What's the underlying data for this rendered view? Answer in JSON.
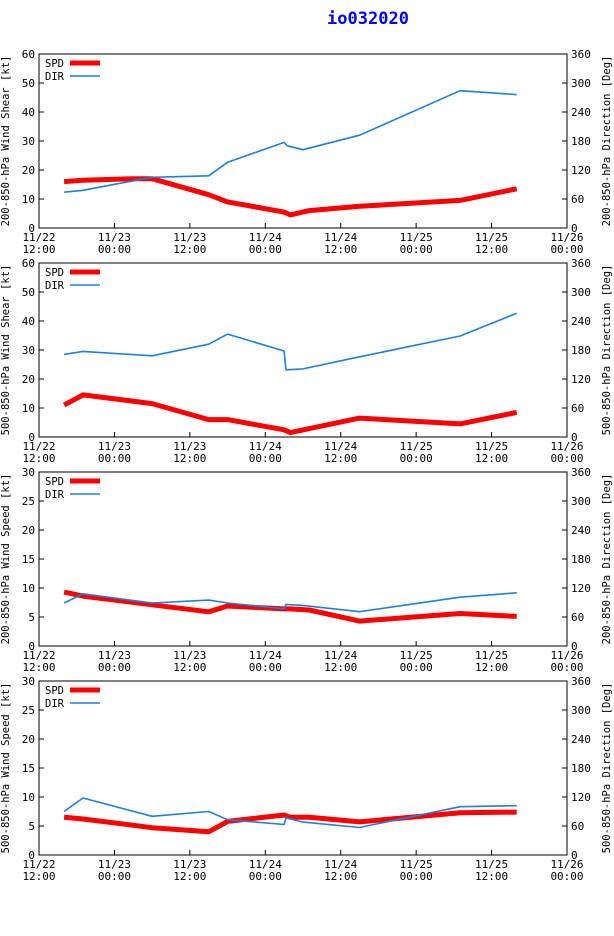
{
  "title": "io032020",
  "colors": {
    "title": "#0000ff",
    "spd": "#ff0000",
    "dir": "#1e7fe0",
    "axes": "#000000",
    "background": "#ffffff"
  },
  "legend": {
    "spd": "SPD",
    "dir": "DIR"
  },
  "x_ticks": [
    {
      "date": "11/22",
      "time": "12:00"
    },
    {
      "date": "11/23",
      "time": "00:00"
    },
    {
      "date": "11/23",
      "time": "12:00"
    },
    {
      "date": "11/24",
      "time": "00:00"
    },
    {
      "date": "11/24",
      "time": "12:00"
    },
    {
      "date": "11/25",
      "time": "00:00"
    },
    {
      "date": "11/25",
      "time": "12:00"
    },
    {
      "date": "11/26",
      "time": "00:00"
    }
  ],
  "chart_data": [
    {
      "type": "line",
      "ylabel_left": "200-850-hPa Wind Shear [kt]",
      "ylabel_right": "200-850-hPa Direction [Deg]",
      "xlim_hours": [
        0,
        84
      ],
      "ylim_left": [
        0,
        60
      ],
      "yticks_left": [
        0,
        10,
        20,
        30,
        40,
        50,
        60
      ],
      "ylim_right": [
        0,
        360
      ],
      "yticks_right": [
        0,
        60,
        120,
        180,
        240,
        300,
        360
      ],
      "series": [
        {
          "name": "SPD",
          "axis": "left",
          "x": [
            4,
            7,
            15,
            18,
            27,
            30,
            39,
            40,
            43,
            51,
            67,
            76
          ],
          "y": [
            16,
            16.5,
            17,
            17,
            11.5,
            9,
            5.5,
            4.5,
            6,
            7.5,
            9.5,
            13.5
          ]
        },
        {
          "name": "DIR",
          "axis": "right",
          "x": [
            4,
            7,
            18,
            27,
            30,
            39,
            39.5,
            42,
            51,
            67,
            76
          ],
          "y": [
            74,
            78,
            105,
            108,
            136,
            177,
            170,
            162,
            192,
            284,
            276
          ]
        }
      ]
    },
    {
      "type": "line",
      "ylabel_left": "500-850-hPa Wind Shear [kt]",
      "ylabel_right": "500-850-hPa Direction [Deg]",
      "xlim_hours": [
        0,
        84
      ],
      "ylim_left": [
        0,
        60
      ],
      "yticks_left": [
        0,
        10,
        20,
        30,
        40,
        50,
        60
      ],
      "ylim_right": [
        0,
        360
      ],
      "yticks_right": [
        0,
        60,
        120,
        180,
        240,
        300,
        360
      ],
      "series": [
        {
          "name": "SPD",
          "axis": "left",
          "x": [
            4,
            7,
            18,
            27,
            30,
            39,
            40,
            51,
            67,
            76
          ],
          "y": [
            11,
            14.5,
            11.5,
            6,
            6,
            2.5,
            1.5,
            6.5,
            4.5,
            8.5
          ]
        },
        {
          "name": "DIR",
          "axis": "right",
          "x": [
            4,
            7,
            18,
            27,
            30,
            39,
            39.3,
            42,
            51,
            67,
            76
          ],
          "y": [
            171,
            177,
            168,
            192,
            213,
            178,
            139,
            141,
            166,
            209,
            256
          ]
        }
      ]
    },
    {
      "type": "line",
      "ylabel_left": "200-850-hPa Wind Speed [kt]",
      "ylabel_right": "200-850-hPa Direction [Deg]",
      "xlim_hours": [
        0,
        84
      ],
      "ylim_left": [
        0,
        30
      ],
      "yticks_left": [
        0,
        5,
        10,
        15,
        20,
        25,
        30
      ],
      "ylim_right": [
        0,
        360
      ],
      "yticks_right": [
        0,
        60,
        120,
        180,
        240,
        300,
        360
      ],
      "series": [
        {
          "name": "SPD",
          "axis": "left",
          "x": [
            4,
            7,
            18,
            27,
            30,
            39,
            40,
            43,
            51,
            67,
            76
          ],
          "y": [
            9.3,
            8.6,
            7.1,
            5.9,
            6.9,
            6.4,
            6.4,
            6.2,
            4.3,
            5.6,
            5.1
          ]
        },
        {
          "name": "DIR",
          "axis": "right",
          "x": [
            4,
            7,
            18,
            27,
            30,
            39,
            39.3,
            42,
            51,
            67,
            76
          ],
          "y": [
            89,
            108,
            89,
            95,
            89,
            77,
            86,
            84,
            71,
            101,
            110
          ]
        }
      ]
    },
    {
      "type": "line",
      "ylabel_left": "500-850-hPa Wind Speed [kt]",
      "ylabel_right": "500-850-hPa Direction [Deg]",
      "xlim_hours": [
        0,
        84
      ],
      "ylim_left": [
        0,
        30
      ],
      "yticks_left": [
        0,
        5,
        10,
        15,
        20,
        25,
        30
      ],
      "ylim_right": [
        0,
        360
      ],
      "yticks_right": [
        0,
        60,
        120,
        180,
        240,
        300,
        360
      ],
      "series": [
        {
          "name": "SPD",
          "axis": "left",
          "x": [
            4,
            7,
            18,
            27,
            30,
            39,
            40,
            43,
            51,
            67,
            76
          ],
          "y": [
            6.5,
            6.2,
            4.7,
            4.0,
            5.8,
            6.9,
            6.5,
            6.5,
            5.7,
            7.3,
            7.4
          ]
        },
        {
          "name": "DIR",
          "axis": "right",
          "x": [
            4,
            7,
            18,
            27,
            30,
            39,
            39.3,
            42,
            51,
            67,
            76
          ],
          "y": [
            90,
            118,
            80,
            90,
            73,
            63,
            77,
            68,
            57,
            100,
            102
          ]
        }
      ]
    }
  ]
}
